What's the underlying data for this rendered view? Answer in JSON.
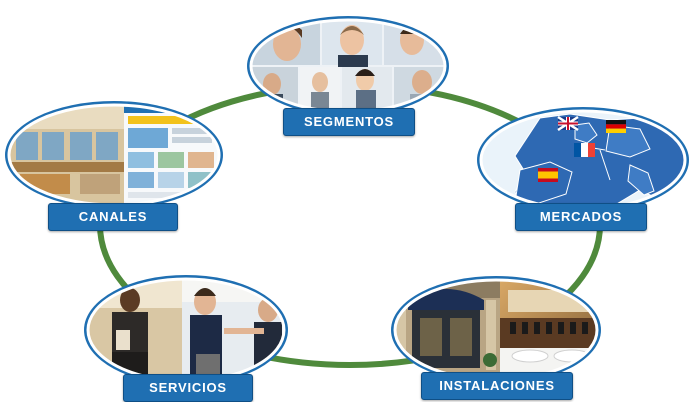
{
  "diagram": {
    "ring_color": "#4f8a3c",
    "badge_color": "#1f6fb2",
    "nodes": [
      {
        "id": "segmentos",
        "label": "SEGMENTOS",
        "image": "business-team-call-center-photos"
      },
      {
        "id": "mercados",
        "label": "MERCADOS",
        "image": "europe-map-with-flags"
      },
      {
        "id": "instalaciones",
        "label": "INSTALACIONES",
        "image": "hotel-facade-and-conference-room"
      },
      {
        "id": "servicios",
        "label": "SERVICIOS",
        "image": "hotel-reception-check-in"
      },
      {
        "id": "canales",
        "label": "CANALES",
        "image": "travel-agency-office-and-website"
      }
    ]
  }
}
